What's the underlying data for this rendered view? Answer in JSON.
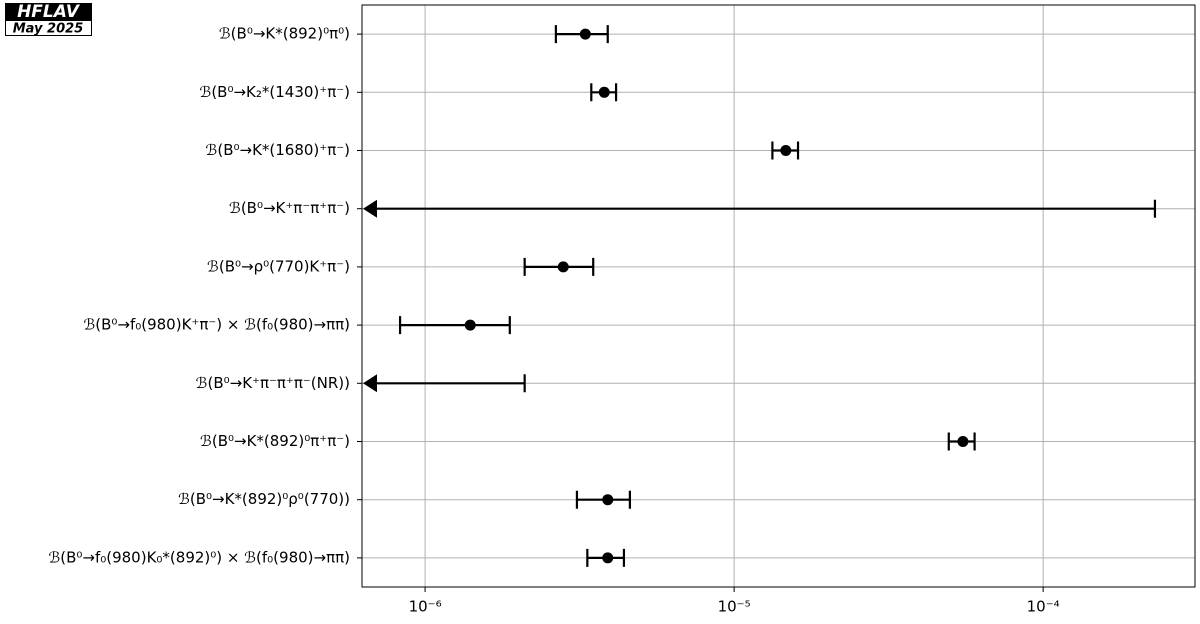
{
  "logo": {
    "title": "HFLAV",
    "date": "May 2025"
  },
  "chart_data": {
    "type": "errorbar",
    "orientation": "horizontal",
    "categories": [
      "ℬ(B⁰→K*(892)⁰π⁰)",
      "ℬ(B⁰→K₂*(1430)⁺π⁻)",
      "ℬ(B⁰→K*(1680)⁺π⁻)",
      "ℬ(B⁰→K⁺π⁻π⁺π⁻)",
      "ℬ(B⁰→ρ⁰(770)K⁺π⁻)",
      "ℬ(B⁰→f₀(980)K⁺π⁻) × ℬ(f₀(980)→ππ)",
      "ℬ(B⁰→K⁺π⁻π⁺π⁻(NR))",
      "ℬ(B⁰→K*(892)⁰π⁺π⁻)",
      "ℬ(B⁰→K*(892)⁰ρ⁰(770))",
      "ℬ(B⁰→f₀(980)K₀*(892)⁰) × ℬ(f₀(980)→ππ)"
    ],
    "values": [
      3.3e-06,
      3.8e-06,
      1.47e-05,
      null,
      2.8e-06,
      1.4e-06,
      null,
      5.5e-05,
      3.9e-06,
      3.9e-06
    ],
    "errors_minus": [
      6.5e-07,
      3.5e-07,
      1.4e-06,
      null,
      7e-07,
      5.7e-07,
      null,
      5.5e-06,
      8e-07,
      5.5e-07
    ],
    "errors_plus": [
      6e-07,
      3.5e-07,
      1.4e-06,
      null,
      7e-07,
      4.8e-07,
      null,
      5e-06,
      7e-07,
      5e-07
    ],
    "upper_limits": [
      null,
      null,
      null,
      0.00023,
      null,
      null,
      2.1e-06,
      null,
      null,
      null
    ],
    "color": "#000000",
    "xscale": "log",
    "xlim": [
      6.25e-07,
      0.00031
    ],
    "xticks": [
      {
        "value": 1e-06,
        "label": "10⁻⁶"
      },
      {
        "value": 1e-05,
        "label": "10⁻⁵"
      },
      {
        "value": 0.0001,
        "label": "10⁻⁴"
      }
    ],
    "grid": true
  }
}
